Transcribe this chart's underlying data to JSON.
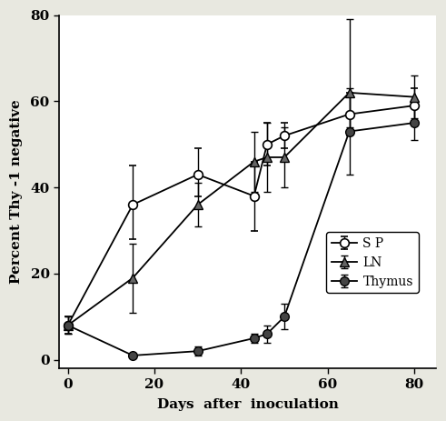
{
  "x_days": [
    0,
    15,
    30,
    43,
    46,
    50,
    65,
    80
  ],
  "SP": {
    "y": [
      8,
      36,
      43,
      38,
      50,
      52,
      57,
      59
    ],
    "yerr_low": [
      2,
      8,
      5,
      8,
      5,
      3,
      5,
      4
    ],
    "yerr_high": [
      2,
      9,
      6,
      8,
      5,
      3,
      5,
      4
    ],
    "label": "S P"
  },
  "LN": {
    "y": [
      8,
      19,
      36,
      46,
      47,
      47,
      62,
      61
    ],
    "yerr_low": [
      2,
      8,
      5,
      7,
      8,
      7,
      8,
      5
    ],
    "yerr_high": [
      2,
      8,
      5,
      7,
      8,
      7,
      17,
      5
    ],
    "label": "LN"
  },
  "Thymus": {
    "y": [
      8,
      1,
      2,
      5,
      6,
      10,
      53,
      55
    ],
    "yerr_low": [
      2,
      0.5,
      1,
      1,
      2,
      3,
      10,
      4
    ],
    "yerr_high": [
      2,
      0.5,
      1,
      1,
      2,
      3,
      10,
      4
    ],
    "label": "Thymus"
  },
  "xlabel": "Days  after  inoculation",
  "ylabel": "Percent Thy -1 negative",
  "xlim": [
    -2,
    85
  ],
  "ylim": [
    -2,
    80
  ],
  "xticks": [
    0,
    20,
    40,
    60,
    80
  ],
  "yticks": [
    0,
    20,
    40,
    60,
    80
  ],
  "bg_color": "#ffffff",
  "fig_bg_color": "#e8e8e0"
}
